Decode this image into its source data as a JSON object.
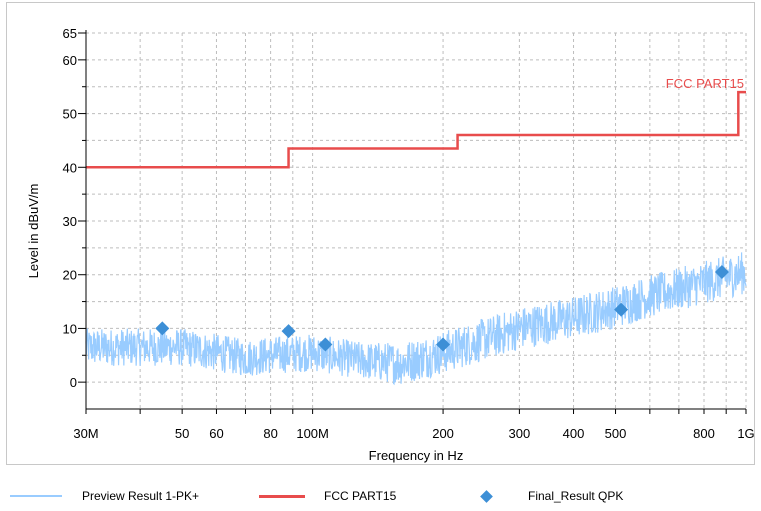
{
  "chart_data": {
    "type": "line",
    "xlabel": "Frequency in Hz",
    "ylabel": "Level in dBuV/m",
    "x_scale": "log",
    "xlim": [
      30000000,
      1000000000
    ],
    "ylim": [
      -5,
      65
    ],
    "x_ticks": [
      {
        "value": 30000000,
        "label": "30M"
      },
      {
        "value": 50000000,
        "label": "50"
      },
      {
        "value": 60000000,
        "label": "60"
      },
      {
        "value": 80000000,
        "label": "80"
      },
      {
        "value": 100000000,
        "label": "100M"
      },
      {
        "value": 200000000,
        "label": "200"
      },
      {
        "value": 300000000,
        "label": "300"
      },
      {
        "value": 400000000,
        "label": "400"
      },
      {
        "value": 500000000,
        "label": "500"
      },
      {
        "value": 800000000,
        "label": "800"
      },
      {
        "value": 1000000000,
        "label": "1G"
      }
    ],
    "y_ticks": [
      0,
      10,
      20,
      30,
      40,
      50,
      60,
      65
    ],
    "grid": true,
    "series": [
      {
        "name": "Preview Result 1-PK+",
        "kind": "noise-band",
        "color": "#99ccff",
        "x": [
          30000000,
          40000000,
          50000000,
          60000000,
          70000000,
          80000000,
          100000000,
          130000000,
          160000000,
          200000000,
          250000000,
          300000000,
          400000000,
          500000000,
          600000000,
          800000000,
          1000000000
        ],
        "center": [
          6.5,
          6.5,
          6.5,
          5.5,
          4.5,
          5.0,
          5.5,
          4.0,
          3.5,
          5.5,
          8.0,
          10.0,
          12.0,
          14.0,
          16.0,
          18.5,
          20.5
        ],
        "spread": [
          3.5,
          3.5,
          3.5,
          3.5,
          3.5,
          3.5,
          3.5,
          3.5,
          4.0,
          4.0,
          4.0,
          4.0,
          4.0,
          4.0,
          4.0,
          4.0,
          4.0
        ]
      },
      {
        "name": "FCC PART15",
        "kind": "step",
        "color": "#e84c4c",
        "x": [
          30000000,
          88000000,
          88000000,
          216000000,
          216000000,
          960000000,
          960000000,
          1000000000
        ],
        "y": [
          40,
          40,
          43.5,
          43.5,
          46,
          46,
          54,
          54
        ]
      },
      {
        "name": "Final_Result QPK",
        "kind": "markers",
        "color": "#3d8fd6",
        "x": [
          45000000,
          88000000,
          107000000,
          200000000,
          515000000,
          880000000
        ],
        "y": [
          10,
          9.5,
          7,
          7,
          13.5,
          20.5
        ]
      }
    ],
    "annotations": [
      {
        "text": "FCC PART15",
        "x": 960000000,
        "y": 54
      }
    ]
  },
  "legend": {
    "preview_label": "Preview  Result 1-PK+",
    "fcc_label": "FCC PART15",
    "final_label": "Final_Result QPK",
    "preview_color": "#99ccff",
    "fcc_color": "#e84c4c",
    "final_color": "#3d8fd6"
  }
}
